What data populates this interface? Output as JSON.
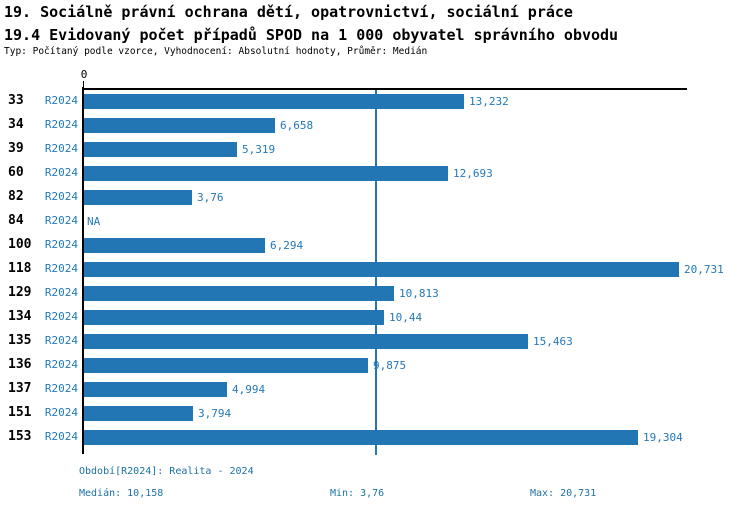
{
  "header": {
    "title": "19. Sociálně právní ochrana dětí, opatrovnictví, sociální práce",
    "subtitle": "19.4 Evidovaný počet případů SPOD na 1 000 obyvatel správního obvodu",
    "meta_line": "Typ: Počítaný podle vzorce, Vyhodnocení: Absolutní hodnoty, Průměr: Medián"
  },
  "colors": {
    "bar": "#2276b4",
    "label_blue": "#2478b8",
    "footer_blue": "#1d72a4",
    "median_line": "#2276b4",
    "axis": "#000000"
  },
  "chart_data": {
    "type": "bar",
    "orientation": "horizontal",
    "title": "19.4 Evidovaný počet případů SPOD na 1 000 obyvatel správního obvodu",
    "xlim": [
      0,
      21.0
    ],
    "axis_origin_label": "0",
    "grid": false,
    "median_value": 10.158,
    "series_name": "R2024",
    "categories": [
      "33",
      "34",
      "39",
      "60",
      "82",
      "84",
      "100",
      "118",
      "129",
      "134",
      "135",
      "136",
      "137",
      "151",
      "153"
    ],
    "rows": [
      {
        "category": "33",
        "series": "R2024",
        "value": 13.232,
        "label": "13,232"
      },
      {
        "category": "34",
        "series": "R2024",
        "value": 6.658,
        "label": "6,658"
      },
      {
        "category": "39",
        "series": "R2024",
        "value": 5.319,
        "label": "5,319"
      },
      {
        "category": "60",
        "series": "R2024",
        "value": 12.693,
        "label": "12,693"
      },
      {
        "category": "82",
        "series": "R2024",
        "value": 3.76,
        "label": "3,76"
      },
      {
        "category": "84",
        "series": "R2024",
        "value": null,
        "label": "NA"
      },
      {
        "category": "100",
        "series": "R2024",
        "value": 6.294,
        "label": "6,294"
      },
      {
        "category": "118",
        "series": "R2024",
        "value": 20.731,
        "label": "20,731"
      },
      {
        "category": "129",
        "series": "R2024",
        "value": 10.813,
        "label": "10,813"
      },
      {
        "category": "134",
        "series": "R2024",
        "value": 10.44,
        "label": "10,44"
      },
      {
        "category": "135",
        "series": "R2024",
        "value": 15.463,
        "label": "15,463"
      },
      {
        "category": "136",
        "series": "R2024",
        "value": 9.875,
        "label": "9,875"
      },
      {
        "category": "137",
        "series": "R2024",
        "value": 4.994,
        "label": "4,994"
      },
      {
        "category": "151",
        "series": "R2024",
        "value": 3.794,
        "label": "3,794"
      },
      {
        "category": "153",
        "series": "R2024",
        "value": 19.304,
        "label": "19,304"
      }
    ]
  },
  "footer": {
    "period_line": "Období[R2024]: Realita - 2024",
    "median_label": "Medián: 10,158",
    "min_label": "Min: 3,76",
    "max_label": "Max: 20,731"
  }
}
